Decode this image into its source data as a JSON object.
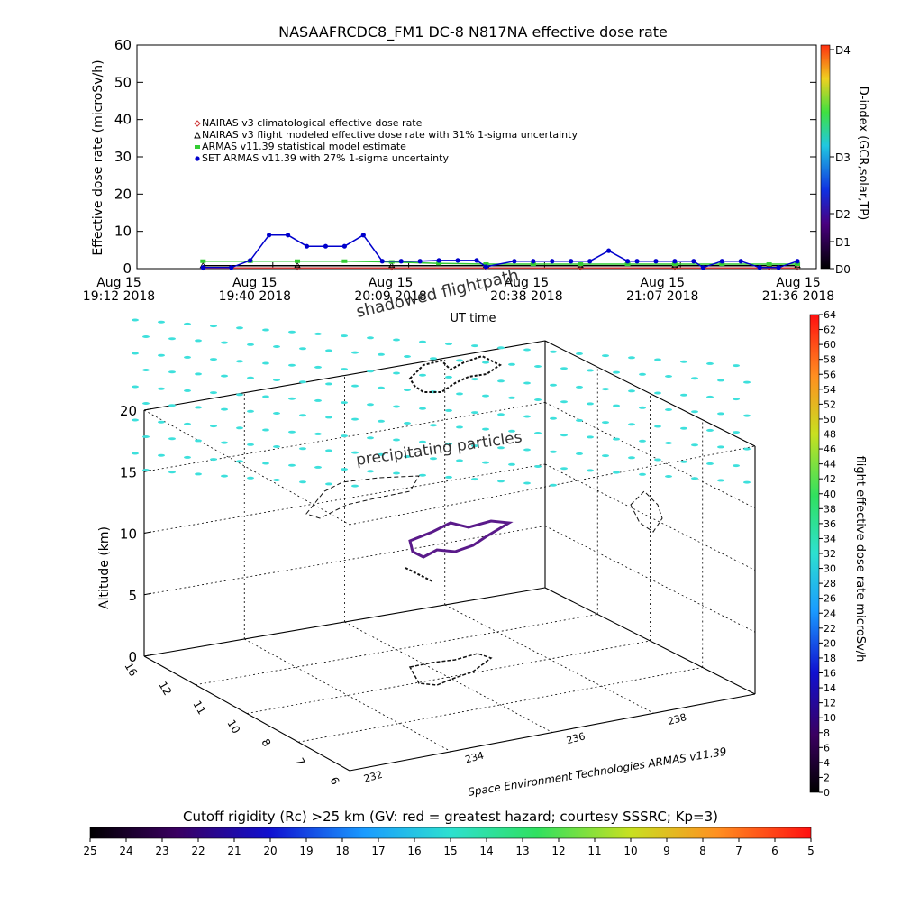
{
  "chart_data": [
    {
      "type": "line",
      "title": "NASAAFRCDC8_FM1 DC-8   N817NA effective dose rate",
      "ylabel": "Effective dose rate (microSv/h)",
      "xlabel": "UT time",
      "ylim": [
        0,
        60
      ],
      "y_ticks": [
        "0",
        "10",
        "20",
        "30",
        "40",
        "50",
        "60"
      ],
      "x_ticks": [
        {
          "date": "Aug 15",
          "time": "19:12 2018"
        },
        {
          "date": "Aug 15",
          "time": "19:40 2018"
        },
        {
          "date": "Aug 15",
          "time": "20:09 2018"
        },
        {
          "date": "Aug 15",
          "time": "20:38 2018"
        },
        {
          "date": "Aug 15",
          "time": "21:07 2018"
        },
        {
          "date": "Aug 15",
          "time": "21:36 2018"
        }
      ],
      "x_minutes_range": [
        0,
        144
      ],
      "right_axis": {
        "label": "D-index (GCR,solar,TP)",
        "ticks": [
          "D0",
          "D1",
          "D2",
          "D3",
          "D4"
        ]
      },
      "legend": [
        {
          "label": "NAIRAS v3 climatological effective dose rate",
          "color": "#cc3333",
          "marker": "diamond"
        },
        {
          "label": "NAIRAS v3 flight modeled effective dose rate with 31% 1-sigma uncertainty",
          "color": "#000000",
          "marker": "triangle"
        },
        {
          "label": "ARMAS v11.39 statistical model estimate",
          "color": "#33cc33",
          "marker": "asterisk"
        },
        {
          "label": "SET ARMAS v11.39 with 27% 1-sigma uncertainty",
          "color": "#0000cc",
          "marker": "circle"
        }
      ],
      "series": [
        {
          "name": "SET ARMAS v11.39 with 27% 1-sigma uncertainty",
          "color": "#0000cc",
          "x": [
            14,
            20,
            24,
            28,
            32,
            36,
            40,
            44,
            48,
            52,
            56,
            60,
            64,
            68,
            72,
            74,
            80,
            84,
            88,
            92,
            96,
            100,
            104,
            106,
            110,
            114,
            118,
            120,
            124,
            128,
            132,
            136,
            140
          ],
          "y": [
            0.3,
            0.3,
            2.2,
            9.0,
            9.0,
            6.0,
            6.0,
            6.0,
            9.0,
            2.0,
            2.0,
            2.0,
            2.2,
            2.2,
            2.2,
            0.5,
            2.0,
            2.0,
            2.0,
            2.0,
            2.0,
            4.8,
            2.0,
            2.0,
            2.0,
            2.0,
            2.0,
            0.3,
            2.0,
            2.0,
            0.3,
            0.3,
            2.0
          ]
        },
        {
          "name": "ARMAS v11.39 statistical model estimate",
          "color": "#33cc33",
          "x": [
            14,
            24,
            34,
            44,
            54,
            64,
            74,
            84,
            94,
            104,
            114,
            124,
            134,
            140
          ],
          "y": [
            2.0,
            2.0,
            2.0,
            2.0,
            1.8,
            1.4,
            1.2,
            1.2,
            1.2,
            1.2,
            1.2,
            1.2,
            1.2,
            1.2
          ]
        },
        {
          "name": "NAIRAS v3 flight modeled effective dose rate with 31% 1-sigma uncertainty",
          "color": "#000000",
          "x": [
            14,
            34,
            54,
            74,
            94,
            114,
            134,
            140
          ],
          "y": [
            0.8,
            0.8,
            0.8,
            0.8,
            0.8,
            0.8,
            0.8,
            0.8
          ]
        },
        {
          "name": "NAIRAS v3 climatological effective dose rate",
          "color": "#cc3333",
          "x": [
            14,
            34,
            54,
            74,
            94,
            114,
            134,
            140
          ],
          "y": [
            0.2,
            0.2,
            0.2,
            0.2,
            0.2,
            0.2,
            0.2,
            0.2
          ]
        }
      ]
    },
    {
      "type": "scatter",
      "zlabel": "Altitude (km)",
      "z_ticks": [
        "0",
        "5",
        "10",
        "15",
        "20"
      ],
      "lat_ticks": [
        "16",
        "12",
        "11",
        "10",
        "8",
        "7",
        "6"
      ],
      "lon_ticks": [
        "232",
        "234",
        "236",
        "238"
      ],
      "annotations": [
        "shadowed flightpath",
        "precipitating particles"
      ],
      "credit": "Space Environment Technologies ARMAS v11.39",
      "right_colorbar": {
        "label": "flight effective dose rate microSv/h",
        "ticks": [
          "0",
          "2",
          "4",
          "6",
          "8",
          "10",
          "12",
          "14",
          "16",
          "18",
          "20",
          "22",
          "24",
          "26",
          "28",
          "30",
          "32",
          "34",
          "36",
          "38",
          "40",
          "42",
          "44",
          "46",
          "48",
          "50",
          "52",
          "54",
          "56",
          "58",
          "60",
          "62",
          "64"
        ]
      }
    },
    {
      "type": "heatmap",
      "title": "Cutoff rigidity (Rc) >25 km (GV: red = greatest hazard; courtesy SSSRC; Kp=3)",
      "ticks": [
        "25",
        "24",
        "23",
        "22",
        "21",
        "20",
        "19",
        "18",
        "17",
        "16",
        "15",
        "14",
        "13",
        "12",
        "11",
        "10",
        "9",
        "8",
        "7",
        "6",
        "5"
      ]
    }
  ]
}
